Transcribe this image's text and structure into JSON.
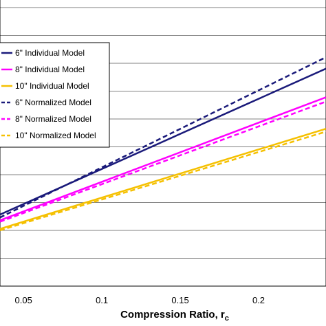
{
  "chart_data": {
    "type": "line",
    "xlabel": "Compression Ratio, r",
    "xlabel_subscript": "c",
    "xlim": [
      0.035,
      0.243
    ],
    "ylim": [
      0,
      1
    ],
    "x_ticks": [
      0.05,
      0.1,
      0.15,
      0.2
    ],
    "x_tick_labels": [
      "0.05",
      "0.1",
      "0.15",
      "0.2"
    ],
    "grid": "horizontal",
    "legend_position": "top-left",
    "series": [
      {
        "name": "6\" Individual Model",
        "style": "solid",
        "color": "#1a1a7a",
        "x": [
          0.035,
          0.243
        ],
        "y": [
          0.25,
          0.76
        ]
      },
      {
        "name": "8\" Individual Model",
        "style": "solid",
        "color": "#ff00ff",
        "x": [
          0.035,
          0.243
        ],
        "y": [
          0.23,
          0.66
        ]
      },
      {
        "name": "10\" Individual Model",
        "style": "solid",
        "color": "#f5c000",
        "x": [
          0.035,
          0.243
        ],
        "y": [
          0.2,
          0.55
        ]
      },
      {
        "name": "6\" Normalized Model",
        "style": "dashed",
        "color": "#1a1a7a",
        "x": [
          0.035,
          0.243
        ],
        "y": [
          0.24,
          0.8
        ]
      },
      {
        "name": "8\" Normalized Model",
        "style": "dashed",
        "color": "#ff00ff",
        "x": [
          0.035,
          0.243
        ],
        "y": [
          0.225,
          0.645
        ]
      },
      {
        "name": "10\" Normalized Model",
        "style": "dashed",
        "color": "#f5c000",
        "x": [
          0.035,
          0.243
        ],
        "y": [
          0.195,
          0.54
        ]
      }
    ]
  }
}
